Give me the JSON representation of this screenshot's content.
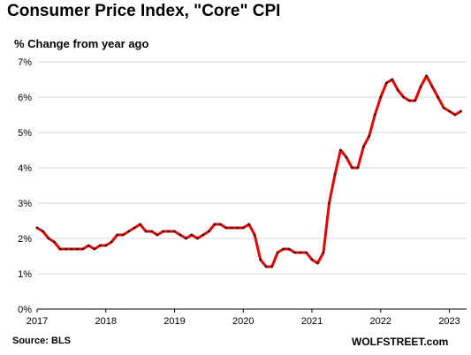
{
  "chart_data": {
    "type": "line",
    "title": "Consumer  Price Index, \"Core\"  CPI",
    "subtitle": "% Change from year ago",
    "xlabel": "",
    "ylabel": "",
    "ylim": [
      0,
      7
    ],
    "yticks": [
      0,
      1,
      2,
      3,
      4,
      5,
      6,
      7
    ],
    "ytick_labels": [
      "0%",
      "1%",
      "2%",
      "3%",
      "4%",
      "5%",
      "6%",
      "7%"
    ],
    "xlim": [
      2017.0,
      2023.25
    ],
    "xticks": [
      2017,
      2018,
      2019,
      2020,
      2021,
      2022,
      2023
    ],
    "xtick_labels": [
      "2017",
      "2018",
      "2019",
      "2020",
      "2021",
      "2022",
      "2023"
    ],
    "grid": true,
    "legend": "none",
    "colors": {
      "line": "#e60000",
      "marker": "#222222",
      "grid": "#d9d9d9",
      "axis": "#000000"
    },
    "series": [
      {
        "x": [
          "2017-01",
          "2017-02",
          "2017-03",
          "2017-04",
          "2017-05",
          "2017-06",
          "2017-07",
          "2017-08",
          "2017-09",
          "2017-10",
          "2017-11",
          "2017-12",
          "2018-01",
          "2018-02",
          "2018-03",
          "2018-04",
          "2018-05",
          "2018-06",
          "2018-07",
          "2018-08",
          "2018-09",
          "2018-10",
          "2018-11",
          "2018-12",
          "2019-01",
          "2019-02",
          "2019-03",
          "2019-04",
          "2019-05",
          "2019-06",
          "2019-07",
          "2019-08",
          "2019-09",
          "2019-10",
          "2019-11",
          "2019-12",
          "2020-01",
          "2020-02",
          "2020-03",
          "2020-04",
          "2020-05",
          "2020-06",
          "2020-07",
          "2020-08",
          "2020-09",
          "2020-10",
          "2020-11",
          "2020-12",
          "2021-01",
          "2021-02",
          "2021-03",
          "2021-04",
          "2021-05",
          "2021-06",
          "2021-07",
          "2021-08",
          "2021-09",
          "2021-10",
          "2021-11",
          "2021-12",
          "2022-01",
          "2022-02",
          "2022-03",
          "2022-04",
          "2022-05",
          "2022-06",
          "2022-07",
          "2022-08",
          "2022-09",
          "2022-10",
          "2022-11",
          "2022-12",
          "2023-01",
          "2023-02",
          "2023-03"
        ],
        "values": [
          2.3,
          2.2,
          2.0,
          1.9,
          1.7,
          1.7,
          1.7,
          1.7,
          1.7,
          1.8,
          1.7,
          1.8,
          1.8,
          1.9,
          2.1,
          2.1,
          2.2,
          2.3,
          2.4,
          2.2,
          2.2,
          2.1,
          2.2,
          2.2,
          2.2,
          2.1,
          2.0,
          2.1,
          2.0,
          2.1,
          2.2,
          2.4,
          2.4,
          2.3,
          2.3,
          2.3,
          2.3,
          2.4,
          2.1,
          1.4,
          1.2,
          1.2,
          1.6,
          1.7,
          1.7,
          1.6,
          1.6,
          1.6,
          1.4,
          1.3,
          1.6,
          3.0,
          3.8,
          4.5,
          4.3,
          4.0,
          4.0,
          4.6,
          4.9,
          5.5,
          6.0,
          6.4,
          6.5,
          6.2,
          6.0,
          5.9,
          5.9,
          6.3,
          6.6,
          6.3,
          6.0,
          5.7,
          5.6,
          5.5,
          5.6
        ]
      }
    ]
  },
  "source": "Source: BLS",
  "watermark": "WOLFSTREET.com"
}
